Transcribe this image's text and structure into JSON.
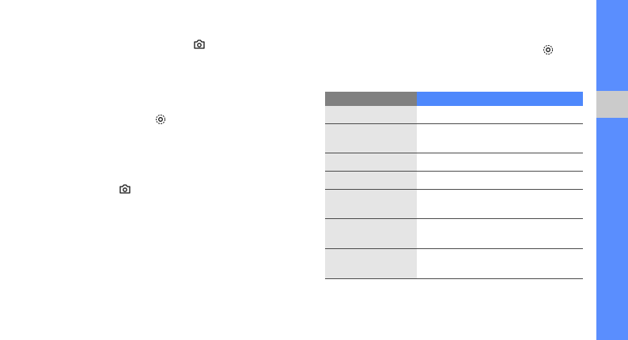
{
  "colors": {
    "sidebar": "#5a8efe",
    "sidebar_tab": "#cbcbcb",
    "table_header_left": "#808080",
    "table_header_right": "#4e88fc",
    "table_cell_left": "#e5e5e5"
  },
  "icons": [
    "camera-icon",
    "settings-gear-icon",
    "settings-gear-icon",
    "camera-icon",
    "settings-gear-icon"
  ],
  "table": {
    "rows": [
      {
        "label": "",
        "value": ""
      },
      {
        "label": "",
        "value": ""
      },
      {
        "label": "",
        "value": ""
      },
      {
        "label": "",
        "value": ""
      },
      {
        "label": "",
        "value": ""
      },
      {
        "label": "",
        "value": ""
      },
      {
        "label": "",
        "value": ""
      }
    ]
  }
}
